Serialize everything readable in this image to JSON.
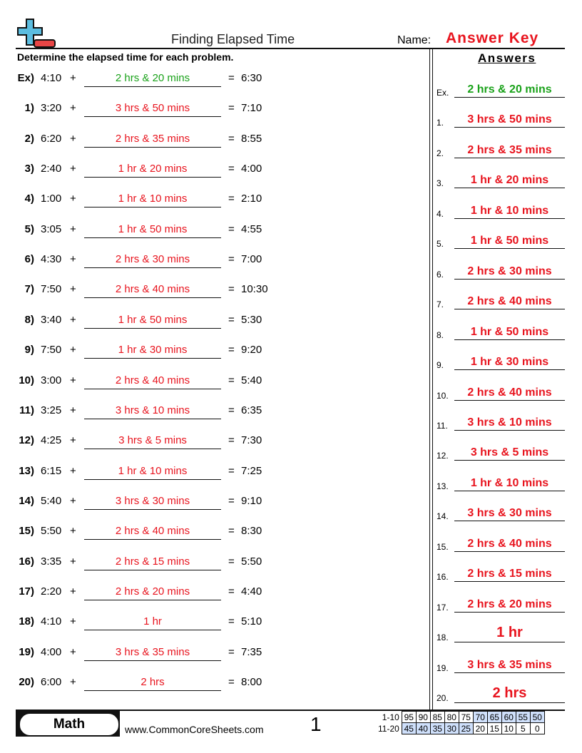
{
  "header": {
    "title": "Finding Elapsed Time",
    "name_label": "Name:",
    "name_value": "Answer Key",
    "instructions": "Determine the elapsed time for each problem.",
    "answers_heading": "Answers"
  },
  "colors": {
    "example": "#1aa21a",
    "answer": "#e8141e",
    "score_highlight": "#cfe0fb",
    "logo_plus": "#5bbde0",
    "logo_minus": "#e84545"
  },
  "problems": [
    {
      "num": "Ex)",
      "start": "4:10",
      "answer": "2 hrs & 20 mins",
      "end": "6:30",
      "example": true
    },
    {
      "num": "1)",
      "start": "3:20",
      "answer": "3 hrs & 50 mins",
      "end": "7:10"
    },
    {
      "num": "2)",
      "start": "6:20",
      "answer": "2 hrs & 35 mins",
      "end": "8:55"
    },
    {
      "num": "3)",
      "start": "2:40",
      "answer": "1 hr & 20 mins",
      "end": "4:00"
    },
    {
      "num": "4)",
      "start": "1:00",
      "answer": "1 hr & 10 mins",
      "end": "2:10"
    },
    {
      "num": "5)",
      "start": "3:05",
      "answer": "1 hr & 50 mins",
      "end": "4:55"
    },
    {
      "num": "6)",
      "start": "4:30",
      "answer": "2 hrs & 30 mins",
      "end": "7:00"
    },
    {
      "num": "7)",
      "start": "7:50",
      "answer": "2 hrs & 40 mins",
      "end": "10:30"
    },
    {
      "num": "8)",
      "start": "3:40",
      "answer": "1 hr & 50 mins",
      "end": "5:30"
    },
    {
      "num": "9)",
      "start": "7:50",
      "answer": "1 hr & 30 mins",
      "end": "9:20"
    },
    {
      "num": "10)",
      "start": "3:00",
      "answer": "2 hrs & 40 mins",
      "end": "5:40"
    },
    {
      "num": "11)",
      "start": "3:25",
      "answer": "3 hrs & 10 mins",
      "end": "6:35"
    },
    {
      "num": "12)",
      "start": "4:25",
      "answer": "3 hrs & 5 mins",
      "end": "7:30"
    },
    {
      "num": "13)",
      "start": "6:15",
      "answer": "1 hr & 10 mins",
      "end": "7:25"
    },
    {
      "num": "14)",
      "start": "5:40",
      "answer": "3 hrs & 30 mins",
      "end": "9:10"
    },
    {
      "num": "15)",
      "start": "5:50",
      "answer": "2 hrs & 40 mins",
      "end": "8:30"
    },
    {
      "num": "16)",
      "start": "3:35",
      "answer": "2 hrs & 15 mins",
      "end": "5:50"
    },
    {
      "num": "17)",
      "start": "2:20",
      "answer": "2 hrs & 20 mins",
      "end": "4:40"
    },
    {
      "num": "18)",
      "start": "4:10",
      "answer": "1 hr",
      "end": "5:10"
    },
    {
      "num": "19)",
      "start": "4:00",
      "answer": "3 hrs & 35 mins",
      "end": "7:35"
    },
    {
      "num": "20)",
      "start": "6:00",
      "answer": "2 hrs",
      "end": "8:00"
    }
  ],
  "answer_labels": [
    "Ex.",
    "1.",
    "2.",
    "3.",
    "4.",
    "5.",
    "6.",
    "7.",
    "8.",
    "9.",
    "10.",
    "11.",
    "12.",
    "13.",
    "14.",
    "15.",
    "16.",
    "17.",
    "18.",
    "19.",
    "20."
  ],
  "symbols": {
    "plus": "+",
    "equals": "="
  },
  "footer": {
    "subject": "Math",
    "website": "www.CommonCoreSheets.com",
    "page": "1"
  },
  "score_table": [
    {
      "label": "1-10",
      "values": [
        "95",
        "90",
        "85",
        "80",
        "75",
        "70",
        "65",
        "60",
        "55",
        "50"
      ],
      "highlighted": [
        false,
        false,
        false,
        false,
        false,
        true,
        true,
        true,
        true,
        true
      ]
    },
    {
      "label": "11-20",
      "values": [
        "45",
        "40",
        "35",
        "30",
        "25",
        "20",
        "15",
        "10",
        "5",
        "0"
      ],
      "highlighted": [
        true,
        true,
        true,
        true,
        true,
        false,
        false,
        false,
        false,
        false
      ]
    }
  ]
}
